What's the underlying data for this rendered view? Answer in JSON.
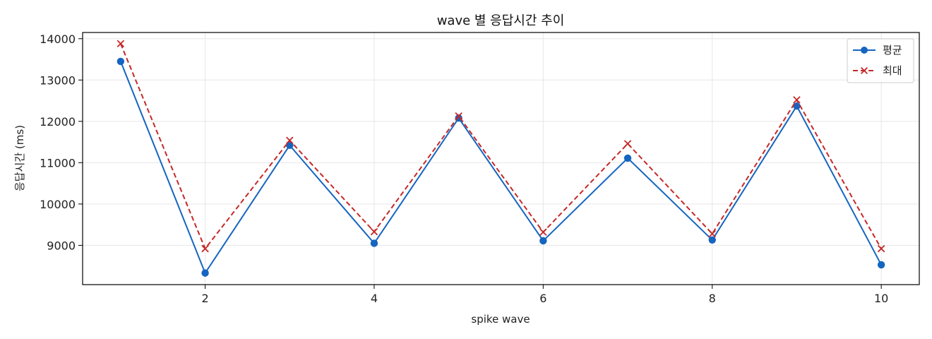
{
  "chart_data": {
    "type": "line",
    "title": "wave 별 응답시간 추이",
    "xlabel": "spike wave",
    "ylabel": "응답시간 (ms)",
    "x": [
      1,
      2,
      3,
      4,
      5,
      6,
      7,
      8,
      9,
      10
    ],
    "xticks": [
      "2",
      "4",
      "6",
      "8",
      "10"
    ],
    "yticks": [
      "9000",
      "10000",
      "11000",
      "12000",
      "13000",
      "14000"
    ],
    "xlim": [
      0.55,
      10.45
    ],
    "ylim": [
      8050,
      14150
    ],
    "grid": true,
    "legend_position": "top-right",
    "series": [
      {
        "name": "평균",
        "values": [
          13450,
          8330,
          11420,
          9050,
          12080,
          9110,
          11110,
          9130,
          12370,
          8530
        ],
        "color": "#1565c0",
        "line_style": "solid",
        "marker": "circle"
      },
      {
        "name": "최대",
        "values": [
          13880,
          8920,
          11540,
          9330,
          12130,
          9320,
          11460,
          9280,
          12520,
          8920
        ],
        "color": "#c62828",
        "line_style": "dashed",
        "marker": "x"
      }
    ]
  }
}
